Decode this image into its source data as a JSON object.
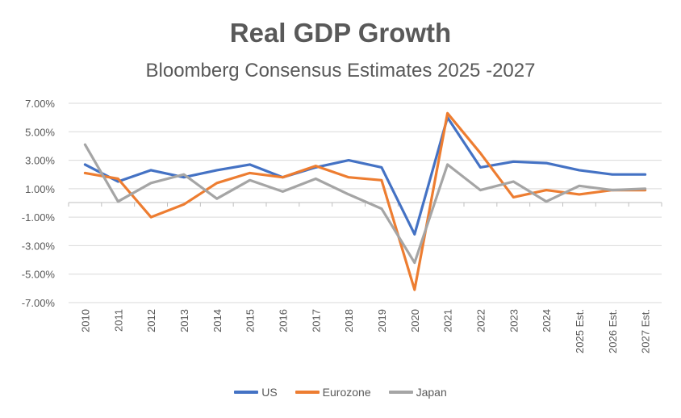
{
  "chart_data": {
    "type": "line",
    "title": "Real GDP Growth",
    "subtitle": "Bloomberg Consensus Estimates 2025 -2027",
    "xlabel": "",
    "ylabel": "",
    "categories": [
      "2010",
      "2011",
      "2012",
      "2013",
      "2014",
      "2015",
      "2016",
      "2017",
      "2018",
      "2019",
      "2020",
      "2021",
      "2022",
      "2023",
      "2024",
      "2025 Est.",
      "2026 Est.",
      "2027 Est."
    ],
    "y_ticks": [
      "7.00%",
      "5.00%",
      "3.00%",
      "1.00%",
      "-1.00%",
      "-3.00%",
      "-5.00%",
      "-7.00%"
    ],
    "ylim": [
      -7,
      7
    ],
    "grid": true,
    "legend_position": "bottom",
    "series": [
      {
        "name": "US",
        "color": "#4472C4",
        "values": [
          2.7,
          1.5,
          2.3,
          1.8,
          2.3,
          2.7,
          1.8,
          2.5,
          3.0,
          2.5,
          -2.2,
          6.0,
          2.5,
          2.9,
          2.8,
          2.3,
          2.0,
          2.0
        ]
      },
      {
        "name": "Eurozone",
        "color": "#ED7D31",
        "values": [
          2.1,
          1.7,
          -1.0,
          -0.1,
          1.4,
          2.1,
          1.8,
          2.6,
          1.8,
          1.6,
          -6.1,
          6.3,
          3.5,
          0.4,
          0.9,
          0.6,
          0.9,
          0.9
        ]
      },
      {
        "name": "Japan",
        "color": "#A5A5A5",
        "values": [
          4.1,
          0.1,
          1.4,
          2.0,
          0.3,
          1.6,
          0.8,
          1.7,
          0.6,
          -0.4,
          -4.2,
          2.7,
          0.9,
          1.5,
          0.1,
          1.2,
          0.9,
          1.0
        ]
      }
    ]
  }
}
